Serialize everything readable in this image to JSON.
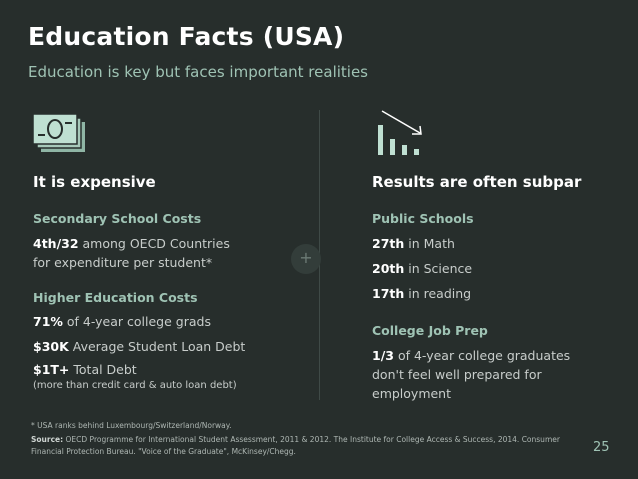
{
  "title": "Education Facts (USA)",
  "subtitle": "Education is key but faces important realities",
  "left": {
    "icon": "money-bill-icon",
    "heading": "It is expensive",
    "sections": [
      {
        "heading": "Secondary School Costs",
        "lines": [
          {
            "bold": "4th/32",
            "text": " among OECD Countries"
          },
          {
            "bold": "",
            "text": "for expenditure per student*"
          }
        ]
      },
      {
        "heading": "Higher Education Costs",
        "lines": [
          {
            "bold": "71%",
            "text": " of 4-year college grads"
          },
          {
            "bold": "$30K",
            "text": " Average Student Loan Debt"
          },
          {
            "bold": "$1T+",
            "text": " Total Debt"
          }
        ],
        "note": "(more than credit card & auto loan debt)"
      }
    ]
  },
  "right": {
    "icon": "declining-chart-icon",
    "heading": "Results are often subpar",
    "sections": [
      {
        "heading": "Public Schools",
        "lines": [
          {
            "bold": "27th",
            "text": " in Math"
          },
          {
            "bold": "20th",
            "text": " in Science"
          },
          {
            "bold": "17th",
            "text": " in reading"
          }
        ]
      },
      {
        "heading": "College Job Prep",
        "lines": [
          {
            "bold": "1/3",
            "text": " of 4-year college graduates"
          },
          {
            "bold": "",
            "text": "don't feel well prepared for"
          },
          {
            "bold": "",
            "text": "employment"
          }
        ]
      }
    ]
  },
  "plus_symbol": "+",
  "footnote": "* USA ranks behind Luxembourg/Switzerland/Norway.",
  "source_label": "Source:",
  "source_text_1": " OECD Programme for International Student Assessment, 2011 & 2012. The Institute for College Access & Success, 2014. Consumer",
  "source_text_2": "Financial Protection Bureau. \"Voice of the Graduate\", McKinsey/Chegg.",
  "page_number": "25",
  "colors": {
    "background": "#272e2c",
    "accent": "#9fc3b4",
    "text": "#ffffff"
  }
}
